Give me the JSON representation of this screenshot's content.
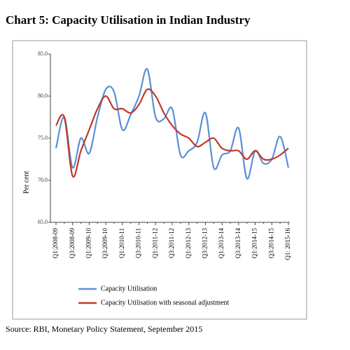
{
  "chart_data": {
    "type": "line",
    "title": "Chart 5: Capacity Utilisation in Indian Industry",
    "ylabel": "Per cent",
    "source": "Source: RBI, Monetary Policy Statement, September 2015",
    "categories": [
      "Q1:2008-09",
      null,
      "Q3:2008-09",
      null,
      "Q1:2009-10",
      null,
      "Q3:2009-10",
      null,
      "Q1:2010-11",
      null,
      "Q3:2010-11",
      null,
      "Q1:2011-12",
      null,
      "Q3:2011-12",
      null,
      "Q1:2012-13",
      null,
      "Q3:2012-13",
      null,
      "Q1:2013-14",
      null,
      "Q3:2013-14",
      null,
      "Q1:2014-15",
      null,
      "Q3:2014-15",
      null,
      "Q1: 2015-16"
    ],
    "series": [
      {
        "name": "Capacity Utilisation",
        "color": "#5b8fd6",
        "values": [
          73.8,
          77.5,
          71.5,
          75.0,
          73.2,
          77.5,
          80.8,
          80.5,
          76.0,
          77.8,
          80.0,
          83.2,
          77.5,
          77.3,
          78.5,
          73.0,
          73.5,
          74.5,
          78.0,
          71.5,
          73.0,
          73.5,
          76.2,
          70.2,
          73.5,
          72.0,
          72.5,
          75.2,
          71.5
        ]
      },
      {
        "name": "Capacity Utilisation with seasonal adjustment",
        "color": "#c0392b",
        "values": [
          76.5,
          77.5,
          70.5,
          73.5,
          76.0,
          78.5,
          80.0,
          78.5,
          78.5,
          78.0,
          79.0,
          80.8,
          80.0,
          78.0,
          76.5,
          75.5,
          75.0,
          74.0,
          74.5,
          75.0,
          73.8,
          73.5,
          73.5,
          72.5,
          73.5,
          72.5,
          72.5,
          73.0,
          73.8
        ]
      }
    ],
    "ylim": [
      65,
      85
    ],
    "yticks": [
      {
        "value": 65,
        "label": "65.0"
      },
      {
        "value": 70,
        "label": "70.0"
      },
      {
        "value": 75,
        "label": "75.0"
      },
      {
        "value": 80,
        "label": "80.0"
      },
      {
        "value": 85,
        "label": "85.0"
      }
    ]
  }
}
